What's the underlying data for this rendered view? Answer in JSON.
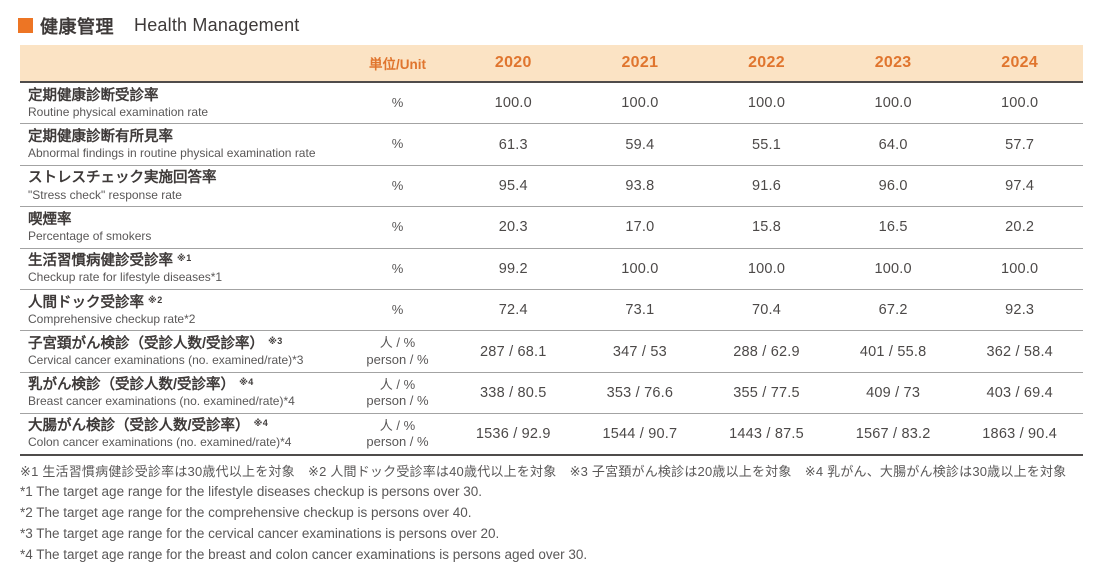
{
  "title": {
    "ja": "健康管理",
    "en": "Health Management"
  },
  "colors": {
    "accent_orange": "#ed7524",
    "header_bg": "#fbe3c4",
    "header_text": "#e0752e"
  },
  "table": {
    "unit_header": "単位/Unit",
    "years": [
      "2020",
      "2021",
      "2022",
      "2023",
      "2024"
    ],
    "rows": [
      {
        "label_ja": "定期健康診断受診率",
        "sup": "",
        "label_en": "Routine physical examination rate",
        "unit1": "%",
        "values": [
          "100.0",
          "100.0",
          "100.0",
          "100.0",
          "100.0"
        ]
      },
      {
        "label_ja": "定期健康診断有所見率",
        "sup": "",
        "label_en": "Abnormal findings in routine physical examination rate",
        "unit1": "%",
        "values": [
          "61.3",
          "59.4",
          "55.1",
          "64.0",
          "57.7"
        ]
      },
      {
        "label_ja": "ストレスチェック実施回答率",
        "sup": "",
        "label_en": "\"Stress check\" response rate",
        "unit1": "%",
        "values": [
          "95.4",
          "93.8",
          "91.6",
          "96.0",
          "97.4"
        ]
      },
      {
        "label_ja": "喫煙率",
        "sup": "",
        "label_en": "Percentage of smokers",
        "unit1": "%",
        "values": [
          "20.3",
          "17.0",
          "15.8",
          "16.5",
          "20.2"
        ]
      },
      {
        "label_ja": "生活習慣病健診受診率",
        "sup": "※1",
        "label_en": "Checkup rate for lifestyle diseases*1",
        "unit1": "%",
        "values": [
          "99.2",
          "100.0",
          "100.0",
          "100.0",
          "100.0"
        ]
      },
      {
        "label_ja": "人間ドック受診率",
        "sup": "※2",
        "label_en": "Comprehensive checkup rate*2",
        "unit1": "%",
        "values": [
          "72.4",
          "73.1",
          "70.4",
          "67.2",
          "92.3"
        ]
      },
      {
        "label_ja": "子宮頚がん検診（受診人数/受診率）",
        "sup": "※3",
        "label_en": "Cervical cancer examinations (no. examined/rate)*3",
        "unit1": "人 / %",
        "unit2": "person / %",
        "values": [
          "287 / 68.1",
          "347 / 53",
          "288 / 62.9",
          "401 / 55.8",
          "362 / 58.4"
        ]
      },
      {
        "label_ja": "乳がん検診（受診人数/受診率）",
        "sup": "※4",
        "label_en": "Breast cancer examinations (no. examined/rate)*4",
        "unit1": "人 / %",
        "unit2": "person / %",
        "values": [
          "338 / 80.5",
          "353 / 76.6",
          "355 / 77.5",
          "409 / 73",
          "403 / 69.4"
        ]
      },
      {
        "label_ja": "大腸がん検診（受診人数/受診率）",
        "sup": "※4",
        "label_en": "Colon cancer examinations (no. examined/rate)*4",
        "unit1": "人 / %",
        "unit2": "person / %",
        "values": [
          "1536 / 92.9",
          "1544 / 90.7",
          "1443 / 87.5",
          "1567 / 83.2",
          "1863 / 90.4"
        ]
      }
    ]
  },
  "footnotes": {
    "ja": "※1 生活習慣病健診受診率は30歳代以上を対象　※2 人間ドック受診率は40歳代以上を対象　※3 子宮頚がん検診は20歳以上を対象　※4 乳がん、大腸がん検診は30歳以上を対象",
    "en1": "*1 The target age range for the lifestyle diseases checkup is persons over 30.",
    "en2": "*2 The target age range for the comprehensive checkup is persons over 40.",
    "en3": "*3 The target age range for the cervical cancer examinations is persons over 20.",
    "en4": "*4 The target age range for the breast and colon cancer examinations is persons aged over 30."
  }
}
